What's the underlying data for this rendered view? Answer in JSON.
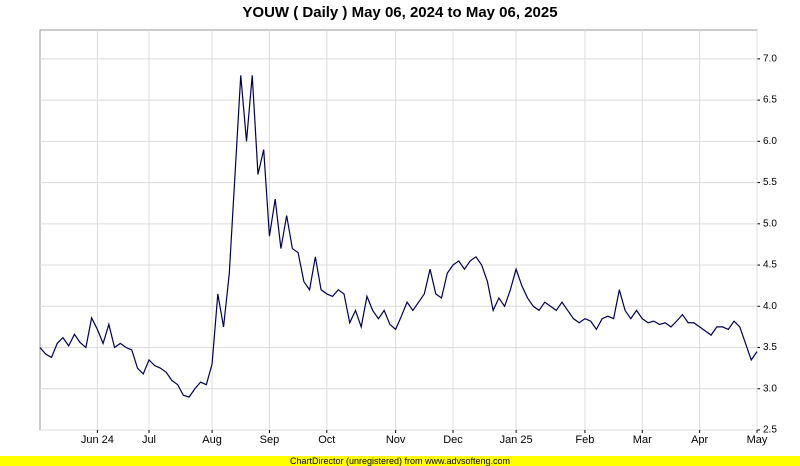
{
  "chart_data": {
    "type": "line",
    "title": "YOUW ( Daily ) May 06, 2024 to May 06, 2025",
    "footer": "ChartDirector (unregistered) from www.advsofteng.com",
    "categories": [
      null,
      null,
      null,
      null,
      null,
      null,
      null,
      null,
      null,
      null,
      "Jun 24",
      null,
      null,
      null,
      null,
      null,
      null,
      null,
      null,
      "Jul",
      null,
      null,
      null,
      null,
      null,
      null,
      null,
      null,
      null,
      null,
      "Aug",
      null,
      null,
      null,
      null,
      null,
      null,
      null,
      null,
      null,
      "Sep",
      null,
      null,
      null,
      null,
      null,
      null,
      null,
      null,
      null,
      "Oct",
      null,
      null,
      null,
      null,
      null,
      null,
      null,
      null,
      null,
      null,
      null,
      "Nov",
      null,
      null,
      null,
      null,
      null,
      null,
      null,
      null,
      null,
      "Dec",
      null,
      null,
      null,
      null,
      null,
      null,
      null,
      null,
      null,
      null,
      "Jan 25",
      null,
      null,
      null,
      null,
      null,
      null,
      null,
      null,
      null,
      null,
      null,
      "Feb",
      null,
      null,
      null,
      null,
      null,
      null,
      null,
      null,
      null,
      "Mar",
      null,
      null,
      null,
      null,
      null,
      null,
      null,
      null,
      null,
      "Apr",
      null,
      null,
      null,
      null,
      null,
      null,
      null,
      null,
      null,
      "May"
    ],
    "series": [
      {
        "color": "#000050",
        "values": [
          3.5,
          3.42,
          3.38,
          3.55,
          3.62,
          3.52,
          3.66,
          3.56,
          3.5,
          3.86,
          3.72,
          3.55,
          3.78,
          3.5,
          3.55,
          3.5,
          3.47,
          3.25,
          3.18,
          3.35,
          3.28,
          3.25,
          3.2,
          3.1,
          3.05,
          2.92,
          2.9,
          3.0,
          3.08,
          3.05,
          3.3,
          4.15,
          3.75,
          4.4,
          5.6,
          6.8,
          6.0,
          6.8,
          5.6,
          5.9,
          4.85,
          5.3,
          4.7,
          5.1,
          4.7,
          4.65,
          4.3,
          4.2,
          4.6,
          4.2,
          4.15,
          4.12,
          4.2,
          4.15,
          3.8,
          3.95,
          3.75,
          4.12,
          3.95,
          3.85,
          3.95,
          3.78,
          3.72,
          3.88,
          4.05,
          3.95,
          4.05,
          4.15,
          4.45,
          4.15,
          4.1,
          4.4,
          4.5,
          4.55,
          4.45,
          4.55,
          4.6,
          4.5,
          4.3,
          3.95,
          4.1,
          4.0,
          4.2,
          4.45,
          4.25,
          4.1,
          4.0,
          3.95,
          4.05,
          4.0,
          3.95,
          4.05,
          3.95,
          3.85,
          3.8,
          3.85,
          3.82,
          3.72,
          3.85,
          3.88,
          3.85,
          4.2,
          3.95,
          3.85,
          3.95,
          3.85,
          3.8,
          3.82,
          3.78,
          3.8,
          3.75,
          3.82,
          3.9,
          3.8,
          3.8,
          3.75,
          3.7,
          3.65,
          3.75,
          3.75,
          3.72,
          3.82,
          3.75,
          3.55,
          3.35,
          3.45
        ]
      }
    ],
    "ylim": [
      2.5,
      7.35
    ],
    "yticks": [
      2.5,
      {
        "value": 3,
        "label": "3.0"
      },
      3.5,
      {
        "value": 4,
        "label": "4.0"
      },
      4.5,
      {
        "value": 5,
        "label": "5.0"
      },
      5.5,
      {
        "value": 6,
        "label": "6.0"
      },
      6.5,
      {
        "value": 7,
        "label": "7.0"
      }
    ],
    "grid": true
  }
}
